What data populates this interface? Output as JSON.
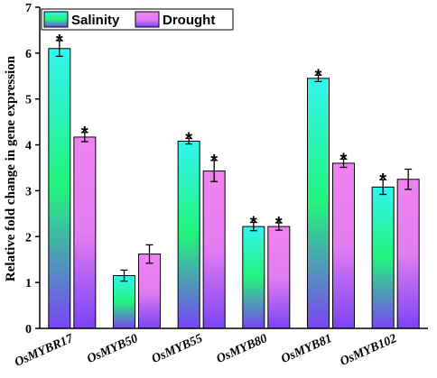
{
  "chart_data": {
    "type": "bar",
    "ylabel": "Relative fold change in gene expression",
    "ylim": [
      0,
      7
    ],
    "yticks": [
      0,
      1,
      2,
      3,
      4,
      5,
      6,
      7
    ],
    "categories": [
      "OsMYBR17",
      "OsMYB50",
      "OsMYB55",
      "OsMYB80",
      "OsMYB81",
      "OsMYB102"
    ],
    "series": [
      {
        "name": "Salinity",
        "values": [
          6.1,
          1.15,
          4.08,
          2.22,
          5.45,
          3.08
        ],
        "errors": [
          0.17,
          0.12,
          0.06,
          0.09,
          0.07,
          0.16
        ],
        "significance": [
          "*",
          "",
          "*",
          "*",
          "*",
          "*"
        ],
        "gradient": [
          "#33f5f0",
          "#22f37a",
          "#7a44f5"
        ]
      },
      {
        "name": "Drought",
        "values": [
          4.17,
          1.62,
          3.43,
          2.22,
          3.6,
          3.25
        ],
        "errors": [
          0.1,
          0.2,
          0.23,
          0.08,
          0.09,
          0.22
        ],
        "significance": [
          "*",
          "",
          "*",
          "*",
          "*",
          ""
        ],
        "gradient": [
          "#f082f0",
          "#e27df0",
          "#7a44f5"
        ]
      }
    ],
    "legend": {
      "position": "top-left"
    },
    "grid": false
  }
}
